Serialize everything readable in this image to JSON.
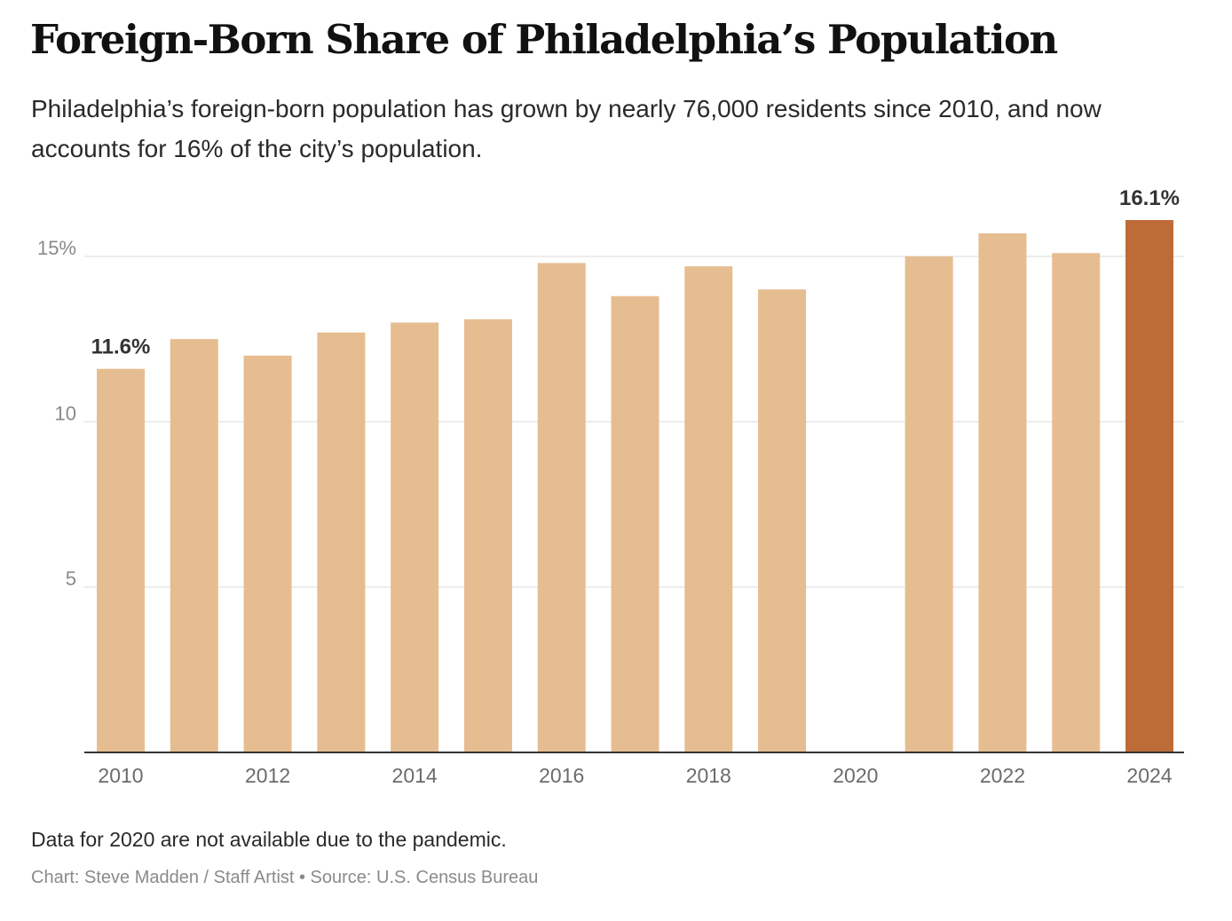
{
  "chart_data": {
    "type": "bar",
    "title": "Foreign-Born Share of Philadelphia’s Population",
    "subtitle": "Philadelphia’s foreign-born population has grown by nearly 76,000 residents since 2010, and now accounts for 16% of the city’s population.",
    "categories": [
      2010,
      2011,
      2012,
      2013,
      2014,
      2015,
      2016,
      2017,
      2018,
      2019,
      2020,
      2021,
      2022,
      2023,
      2024
    ],
    "values": [
      11.6,
      12.5,
      12.0,
      12.7,
      13.0,
      13.1,
      14.8,
      13.8,
      14.7,
      14.0,
      null,
      15.0,
      15.7,
      15.1,
      16.1
    ],
    "ylim": [
      0,
      16.1
    ],
    "y_ticks": [
      {
        "value": 5,
        "label": "5"
      },
      {
        "value": 10,
        "label": "10"
      },
      {
        "value": 15,
        "label": "15%"
      }
    ],
    "x_ticks": [
      {
        "value": 2010,
        "label": "2010"
      },
      {
        "value": 2012,
        "label": "2012"
      },
      {
        "value": 2014,
        "label": "2014"
      },
      {
        "value": 2016,
        "label": "2016"
      },
      {
        "value": 2018,
        "label": "2018"
      },
      {
        "value": 2020,
        "label": "2020"
      },
      {
        "value": 2022,
        "label": "2022"
      },
      {
        "value": 2024,
        "label": "2024"
      }
    ],
    "annotations": [
      {
        "category": 2010,
        "label": "11.6%"
      },
      {
        "category": 2024,
        "label": "16.1%"
      }
    ],
    "highlight_category": 2024,
    "xlabel": "",
    "ylabel": "",
    "grid": true,
    "colors": {
      "bar": "#e6bd90",
      "highlight": "#bd6c37",
      "grid": "#e6e6e6",
      "axis": "#333333"
    }
  },
  "notes": {
    "footnote": "Data for 2020 are not available due to the pandemic.",
    "credit": "Chart: Steve Madden / Staff Artist • Source: U.S. Census Bureau"
  }
}
